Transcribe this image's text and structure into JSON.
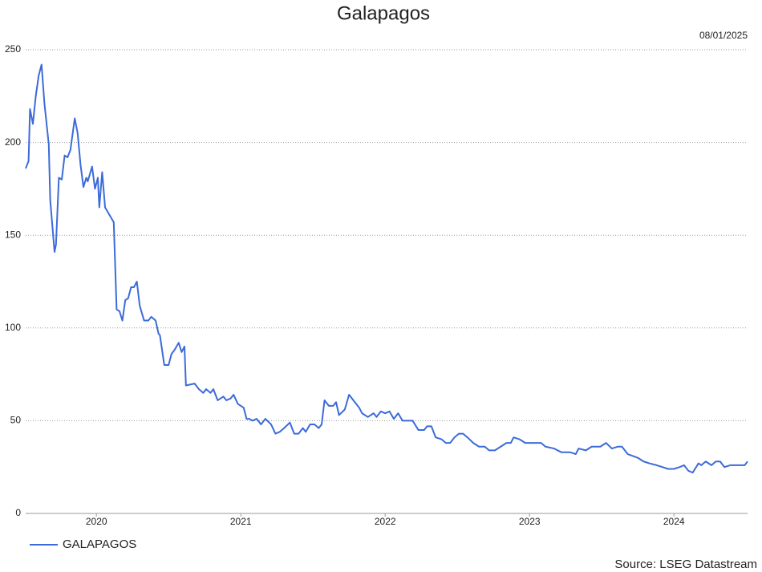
{
  "chart_data": {
    "type": "line",
    "title": "Galapagos",
    "date": "08/01/2025",
    "source": "Source: LSEG Datastream",
    "x": [
      2019.51,
      2019.53,
      2019.54,
      2019.56,
      2019.58,
      2019.6,
      2019.62,
      2019.64,
      2019.67,
      2019.68,
      2019.71,
      2019.72,
      2019.74,
      2019.76,
      2019.78,
      2019.8,
      2019.82,
      2019.85,
      2019.87,
      2019.89,
      2019.91,
      2019.93,
      2019.94,
      2019.97,
      2019.99,
      2020.01,
      2020.02,
      2020.04,
      2020.06,
      2020.09,
      2020.12,
      2020.14,
      2020.16,
      2020.18,
      2020.2,
      2020.22,
      2020.24,
      2020.26,
      2020.28,
      2020.3,
      2020.33,
      2020.36,
      2020.38,
      2020.41,
      2020.43,
      2020.44,
      2020.47,
      2020.5,
      2020.52,
      2020.54,
      2020.57,
      2020.59,
      2020.61,
      2020.62,
      2020.68,
      2020.71,
      2020.74,
      2020.76,
      2020.79,
      2020.81,
      2020.84,
      2020.88,
      2020.9,
      2020.93,
      2020.95,
      2020.98,
      2021.02,
      2021.04,
      2021.06,
      2021.08,
      2021.11,
      2021.14,
      2021.17,
      2021.21,
      2021.24,
      2021.27,
      2021.3,
      2021.34,
      2021.37,
      2021.4,
      2021.43,
      2021.45,
      2021.48,
      2021.51,
      2021.54,
      2021.56,
      2021.58,
      2021.61,
      2021.64,
      2021.66,
      2021.68,
      2021.72,
      2021.75,
      2021.78,
      2021.82,
      2021.84,
      2021.88,
      2021.92,
      2021.94,
      2021.97,
      2022.0,
      2022.03,
      2022.06,
      2022.09,
      2022.12,
      2022.19,
      2022.23,
      2022.27,
      2022.29,
      2022.32,
      2022.35,
      2022.39,
      2022.42,
      2022.45,
      2022.48,
      2022.51,
      2022.54,
      2022.57,
      2022.61,
      2022.65,
      2022.69,
      2022.72,
      2022.76,
      2022.8,
      2022.84,
      2022.87,
      2022.89,
      2022.93,
      2022.97,
      2023.01,
      2023.04,
      2023.08,
      2023.11,
      2023.17,
      2023.22,
      2023.28,
      2023.32,
      2023.34,
      2023.39,
      2023.43,
      2023.49,
      2023.53,
      2023.57,
      2023.61,
      2023.64,
      2023.68,
      2023.75,
      2023.79,
      2023.83,
      2023.88,
      2023.92,
      2023.96,
      2024.0,
      2024.04,
      2024.07,
      2024.1,
      2024.13,
      2024.17,
      2024.19,
      2024.22,
      2024.26,
      2024.29,
      2024.32,
      2024.35,
      2024.39,
      2024.42,
      2024.46,
      2024.49,
      2024.51
    ],
    "series": [
      {
        "name": "GALAPAGOS",
        "color": "#3c6bd9",
        "values": [
          186,
          190,
          218,
          210,
          225,
          236,
          242,
          221,
          199,
          169,
          141,
          145,
          181,
          180,
          193,
          192,
          196,
          213,
          205,
          188,
          176,
          181,
          179,
          187,
          175,
          181,
          165,
          184,
          165,
          161,
          157,
          110,
          109,
          104,
          115,
          116,
          122,
          122,
          125,
          112,
          104,
          104,
          106,
          104,
          97,
          96,
          80,
          80,
          86,
          88,
          92,
          87,
          90,
          69,
          70,
          67,
          65,
          67,
          65,
          67,
          61,
          63,
          61,
          62,
          64,
          59,
          57,
          51,
          51,
          50,
          51,
          48,
          51,
          48,
          43,
          44,
          46,
          49,
          43,
          43,
          46,
          44,
          48,
          48,
          46,
          48,
          61,
          58,
          58,
          60,
          53,
          56,
          64,
          61,
          57,
          54,
          52,
          54,
          52,
          55,
          54,
          55,
          51,
          54,
          50,
          50,
          45,
          45,
          47,
          47,
          41,
          40,
          38,
          38,
          41,
          43,
          43,
          41,
          38,
          36,
          36,
          34,
          34,
          36,
          38,
          38,
          41,
          40,
          38,
          38,
          38,
          38,
          36,
          35,
          33,
          33,
          32,
          35,
          34,
          36,
          36,
          38,
          35,
          36,
          36,
          32,
          30,
          28,
          27,
          26,
          25,
          24,
          24,
          25,
          26,
          23,
          22,
          27,
          26,
          28,
          26,
          28,
          28,
          25,
          26,
          26,
          26,
          26,
          28
        ]
      }
    ],
    "xlim": [
      2019.51,
      2024.51
    ],
    "xticks": [
      2020,
      2021,
      2022,
      2023,
      2024
    ],
    "ylim": [
      0,
      250
    ],
    "yticks": [
      0,
      50,
      100,
      150,
      200,
      250
    ],
    "grid": true
  }
}
